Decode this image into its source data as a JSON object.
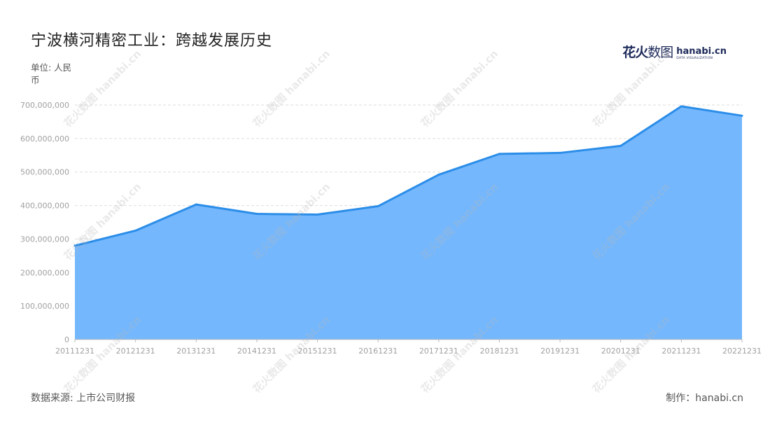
{
  "title": "宁波横河精密工业：跨越发展历史",
  "unit_label": "单位: 人民币",
  "logo": {
    "cn_bold": "花火",
    "cn_light": "数图",
    "domain": "hanabi.cn",
    "tagline": "DATA VISUALIZATION"
  },
  "watermark_text": "花火数图 hanabi.cn",
  "footer": {
    "source": "数据来源: 上市公司财报",
    "credit": "制作：hanabi.cn"
  },
  "colors": {
    "area_fill": "#74b7fd",
    "line": "#2b8de8",
    "grid": "#dddddd",
    "axis_text": "#a0a0a0"
  },
  "chart_data": {
    "type": "area",
    "x": [
      "20111231",
      "20121231",
      "20131231",
      "20141231",
      "20151231",
      "20161231",
      "20171231",
      "20181231",
      "20191231",
      "20201231",
      "20211231",
      "20221231"
    ],
    "values": [
      280000000,
      325000000,
      403000000,
      375000000,
      373000000,
      398000000,
      492000000,
      554000000,
      557000000,
      578000000,
      696000000,
      668000000
    ],
    "ylim": [
      0,
      700000000
    ],
    "yticks": [
      0,
      100000000,
      200000000,
      300000000,
      400000000,
      500000000,
      600000000,
      700000000
    ],
    "ytick_labels": [
      "0",
      "100,000,000",
      "200,000,000",
      "300,000,000",
      "400,000,000",
      "500,000,000",
      "600,000,000",
      "700,000,000"
    ],
    "grid": true
  }
}
